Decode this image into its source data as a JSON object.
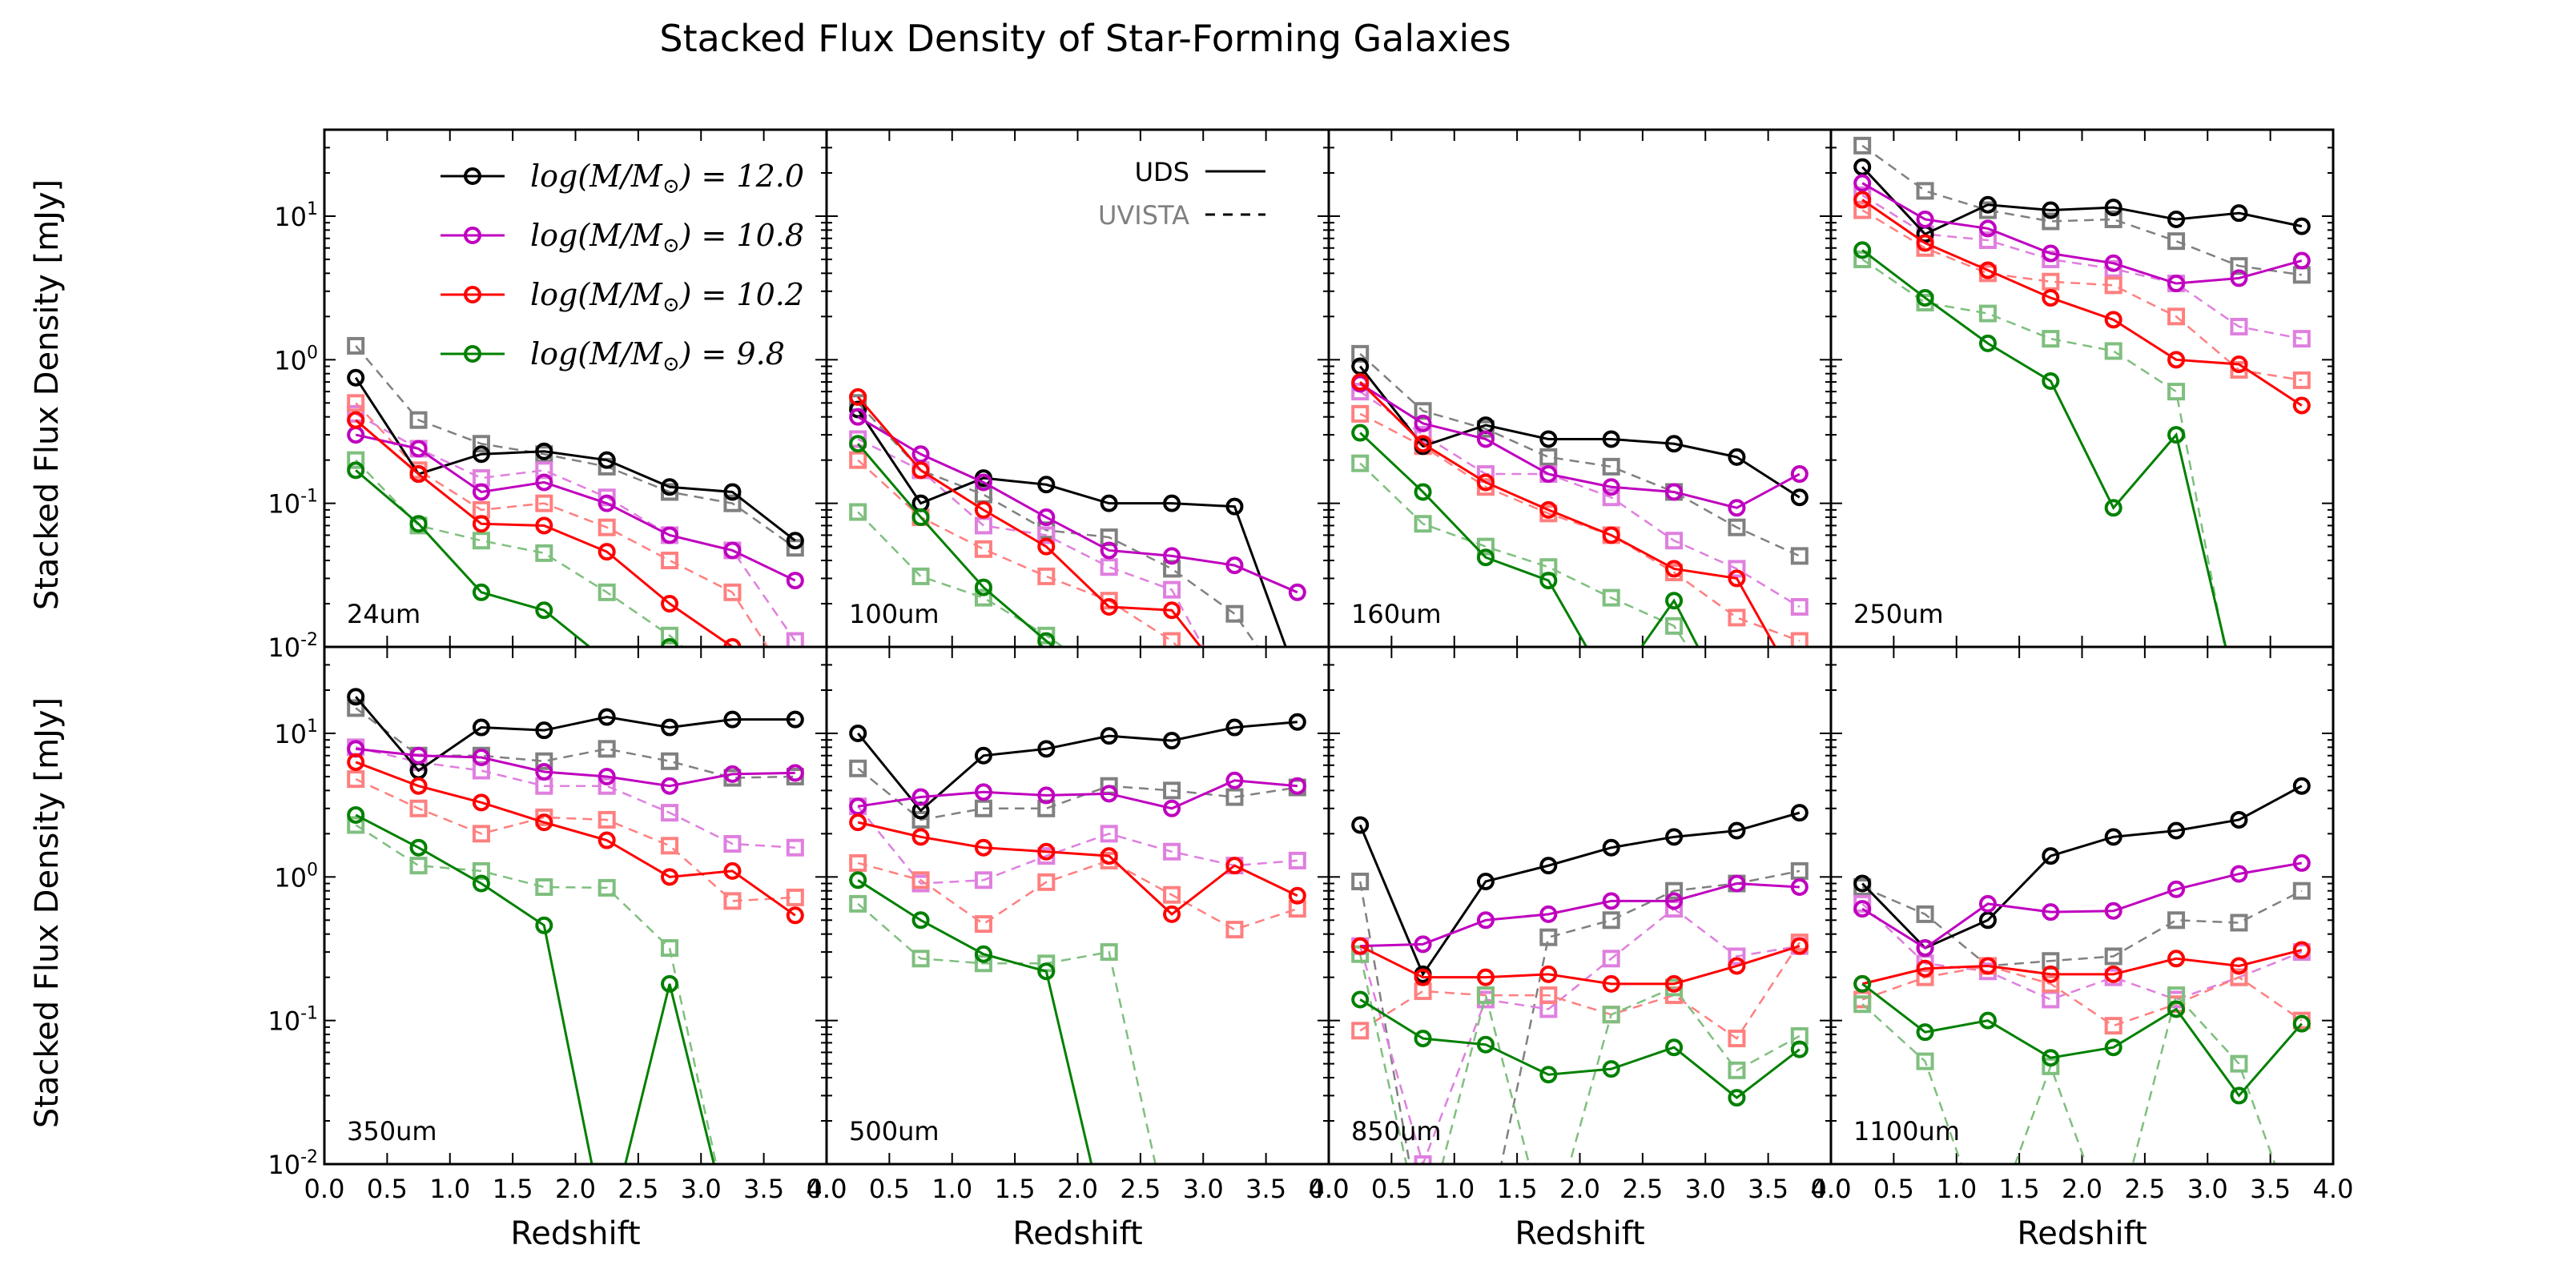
{
  "chart_data": {
    "type": "line",
    "title": "Stacked Flux Density of Star-Forming Galaxies",
    "xlabel": "Redshift",
    "ylabel": "Stacked Flux Density [mJy]",
    "xlim": [
      0.0,
      4.0
    ],
    "ylim": [
      0.01,
      40
    ],
    "yscale": "log",
    "x": [
      0.25,
      0.75,
      1.25,
      1.75,
      2.25,
      2.75,
      3.25,
      3.75
    ],
    "xticks": [
      "0.0",
      "0.5",
      "1.0",
      "1.5",
      "2.0",
      "2.5",
      "3.0",
      "3.5",
      "4.0"
    ],
    "ytick_labels": [
      {
        "base": "10",
        "exp": "-2"
      },
      {
        "base": "10",
        "exp": "-1"
      },
      {
        "base": "10",
        "exp": "0"
      },
      {
        "base": "10",
        "exp": "1"
      }
    ],
    "mass_legend": [
      {
        "label": "log(M/M",
        "value": ") = 12.0",
        "color": "#000000"
      },
      {
        "label": "log(M/M",
        "value": ") = 10.8",
        "color": "#bf00bf"
      },
      {
        "label": "log(M/M",
        "value": ") = 10.2",
        "color": "#ff0000"
      },
      {
        "label": "log(M/M",
        "value": ") = 9.8",
        "color": "#008000"
      }
    ],
    "survey_legend": [
      {
        "label": "UDS",
        "style": "solid",
        "color": "#000000"
      },
      {
        "label": "UVISTA",
        "style": "dashed",
        "color": "#808080"
      }
    ],
    "mass_colors": {
      "uds": [
        "#000000",
        "#bf00bf",
        "#ff0000",
        "#008000"
      ],
      "uvista": [
        "#808080",
        "#df7fdf",
        "#ff7f7f",
        "#7fbf7f"
      ]
    },
    "panels": [
      {
        "band": "24um",
        "uds": [
          [
            0.75,
            0.16,
            0.22,
            0.23,
            0.2,
            0.13,
            0.12,
            0.055
          ],
          [
            0.3,
            0.24,
            0.12,
            0.14,
            0.1,
            0.06,
            0.047,
            0.029
          ],
          [
            0.38,
            0.16,
            0.072,
            0.07,
            0.046,
            0.02,
            0.01,
            0.005
          ],
          [
            0.17,
            0.072,
            0.024,
            0.018,
            0.008,
            0.01,
            0.005,
            0.003
          ]
        ],
        "uvista": [
          [
            1.25,
            0.38,
            0.26,
            0.22,
            0.18,
            0.12,
            0.1,
            0.049
          ],
          [
            0.42,
            0.24,
            0.15,
            0.17,
            0.11,
            0.06,
            0.047,
            0.011
          ],
          [
            0.5,
            0.17,
            0.09,
            0.1,
            0.068,
            0.04,
            0.024,
            0.005
          ],
          [
            0.2,
            0.07,
            0.055,
            0.045,
            0.024,
            0.012,
            0.005,
            0.003
          ]
        ]
      },
      {
        "band": "100um",
        "uds": [
          [
            0.45,
            0.1,
            0.15,
            0.135,
            0.1,
            0.1,
            0.095,
            0.006
          ],
          [
            0.4,
            0.22,
            0.14,
            0.08,
            0.047,
            0.043,
            0.037,
            0.024
          ],
          [
            0.55,
            0.17,
            0.09,
            0.05,
            0.019,
            0.018,
            0.005,
            0.003
          ],
          [
            0.26,
            0.08,
            0.026,
            0.011,
            0.005,
            0.003,
            0.002,
            0.002
          ]
        ],
        "uvista": [
          [
            0.5,
            0.17,
            0.115,
            0.065,
            0.058,
            0.035,
            0.017,
            0.004
          ],
          [
            0.28,
            0.17,
            0.07,
            0.06,
            0.036,
            0.025,
            0.004,
            0.003
          ],
          [
            0.2,
            0.08,
            0.048,
            0.031,
            0.021,
            0.011,
            0.004,
            0.003
          ],
          [
            0.087,
            0.031,
            0.022,
            0.012,
            0.006,
            0.004,
            0.003,
            0.002
          ]
        ]
      },
      {
        "band": "160um",
        "uds": [
          [
            0.9,
            0.25,
            0.35,
            0.28,
            0.28,
            0.26,
            0.21,
            0.11
          ],
          [
            0.68,
            0.36,
            0.28,
            0.16,
            0.13,
            0.12,
            0.093,
            0.16
          ],
          [
            0.7,
            0.26,
            0.14,
            0.09,
            0.06,
            0.035,
            0.03,
            0.005
          ],
          [
            0.31,
            0.12,
            0.042,
            0.029,
            0.005,
            0.021,
            0.003,
            0.002
          ]
        ],
        "uvista": [
          [
            1.1,
            0.44,
            0.33,
            0.21,
            0.18,
            0.12,
            0.068,
            0.043
          ],
          [
            0.6,
            0.3,
            0.16,
            0.16,
            0.11,
            0.055,
            0.035,
            0.019
          ],
          [
            0.42,
            0.25,
            0.13,
            0.085,
            0.06,
            0.033,
            0.016,
            0.011
          ],
          [
            0.19,
            0.072,
            0.05,
            0.036,
            0.022,
            0.014,
            0.003,
            0.002
          ]
        ]
      },
      {
        "band": "250um",
        "uds": [
          [
            22,
            7.5,
            12,
            11,
            11.5,
            9.5,
            10.5,
            8.5
          ],
          [
            17,
            9.5,
            8.2,
            5.5,
            4.7,
            3.4,
            3.7,
            4.9
          ],
          [
            13,
            6.5,
            4.2,
            2.7,
            1.9,
            1.0,
            0.93,
            0.48
          ],
          [
            5.8,
            2.7,
            1.3,
            0.71,
            0.093,
            0.3,
            0.004,
            0.003
          ]
        ],
        "uvista": [
          [
            31,
            15,
            11,
            9.2,
            9.5,
            6.7,
            4.5,
            3.9
          ],
          [
            14,
            7.5,
            6.8,
            5.0,
            4.3,
            3.4,
            1.7,
            1.4
          ],
          [
            11,
            6.0,
            4.0,
            3.5,
            3.3,
            2.0,
            0.85,
            0.72
          ],
          [
            5.0,
            2.5,
            2.1,
            1.4,
            1.15,
            0.6,
            0.003,
            0.003
          ]
        ]
      },
      {
        "band": "350um",
        "uds": [
          [
            18,
            5.5,
            11,
            10.5,
            13,
            11,
            12.5,
            12.5
          ],
          [
            7.8,
            7.0,
            6.8,
            5.4,
            5.0,
            4.3,
            5.2,
            5.3
          ],
          [
            6.3,
            4.3,
            3.3,
            2.4,
            1.8,
            1.0,
            1.1,
            0.54
          ],
          [
            2.7,
            1.6,
            0.9,
            0.46,
            0.003,
            0.18,
            0.003,
            0.003
          ]
        ],
        "uvista": [
          [
            15,
            7.0,
            7.0,
            6.4,
            7.8,
            6.4,
            4.9,
            5.0
          ],
          [
            8.0,
            6.3,
            5.5,
            4.3,
            4.3,
            2.8,
            1.7,
            1.6
          ],
          [
            4.8,
            3.0,
            2.0,
            2.6,
            2.5,
            1.65,
            0.68,
            0.72
          ],
          [
            2.3,
            1.2,
            1.1,
            0.85,
            0.84,
            0.32,
            0.003,
            0.003
          ]
        ]
      },
      {
        "band": "500um",
        "uds": [
          [
            10,
            2.9,
            7.0,
            7.8,
            9.6,
            8.9,
            11,
            12
          ],
          [
            3.1,
            3.6,
            3.9,
            3.7,
            3.8,
            3.0,
            4.7,
            4.3
          ],
          [
            2.4,
            1.9,
            1.6,
            1.5,
            1.4,
            0.55,
            1.2,
            0.74
          ],
          [
            0.95,
            0.5,
            0.29,
            0.22,
            0.003,
            0.003,
            0.003,
            0.003
          ]
        ],
        "uvista": [
          [
            5.7,
            2.5,
            3.0,
            3.0,
            4.3,
            4.0,
            3.6,
            4.2
          ],
          [
            3.1,
            0.9,
            0.95,
            1.4,
            2.0,
            1.5,
            1.2,
            1.3
          ],
          [
            1.25,
            0.95,
            0.47,
            0.92,
            1.3,
            0.75,
            0.43,
            0.6
          ],
          [
            0.65,
            0.27,
            0.25,
            0.25,
            0.3,
            0.003,
            0.003,
            0.003
          ]
        ]
      },
      {
        "band": "850um",
        "uds": [
          [
            2.3,
            0.21,
            0.93,
            1.2,
            1.6,
            1.9,
            2.1,
            2.8
          ],
          [
            0.33,
            0.34,
            0.5,
            0.55,
            0.68,
            0.68,
            0.9,
            0.85
          ],
          [
            0.33,
            0.2,
            0.2,
            0.21,
            0.18,
            0.18,
            0.24,
            0.33
          ],
          [
            0.14,
            0.075,
            0.068,
            0.042,
            0.046,
            0.065,
            0.029,
            0.063
          ]
        ],
        "uvista": [
          [
            0.93,
            0.003,
            0.003,
            0.38,
            0.5,
            0.8,
            0.9,
            1.1
          ],
          [
            0.33,
            0.01,
            0.14,
            0.12,
            0.27,
            0.6,
            0.28,
            0.33
          ],
          [
            0.085,
            0.16,
            0.15,
            0.15,
            0.11,
            0.15,
            0.075,
            0.35
          ],
          [
            0.29,
            0.003,
            0.15,
            0.003,
            0.11,
            0.17,
            0.045,
            0.078
          ]
        ]
      },
      {
        "band": "1100um",
        "uds": [
          [
            0.9,
            0.32,
            0.5,
            1.4,
            1.9,
            2.1,
            2.5,
            4.3
          ],
          [
            0.6,
            0.32,
            0.65,
            0.57,
            0.58,
            0.82,
            1.05,
            1.25
          ],
          [
            0.18,
            0.23,
            0.24,
            0.21,
            0.21,
            0.27,
            0.24,
            0.31
          ],
          [
            0.18,
            0.083,
            0.1,
            0.055,
            0.065,
            0.12,
            0.03,
            0.095
          ]
        ],
        "uvista": [
          [
            0.85,
            0.55,
            0.24,
            0.26,
            0.28,
            0.5,
            0.48,
            0.8
          ],
          [
            0.65,
            0.25,
            0.22,
            0.14,
            0.2,
            0.14,
            0.2,
            0.3
          ],
          [
            0.14,
            0.2,
            0.24,
            0.18,
            0.092,
            0.13,
            0.2,
            0.1
          ],
          [
            0.13,
            0.052,
            0.003,
            0.048,
            0.003,
            0.15,
            0.05,
            0.003
          ]
        ]
      }
    ]
  }
}
